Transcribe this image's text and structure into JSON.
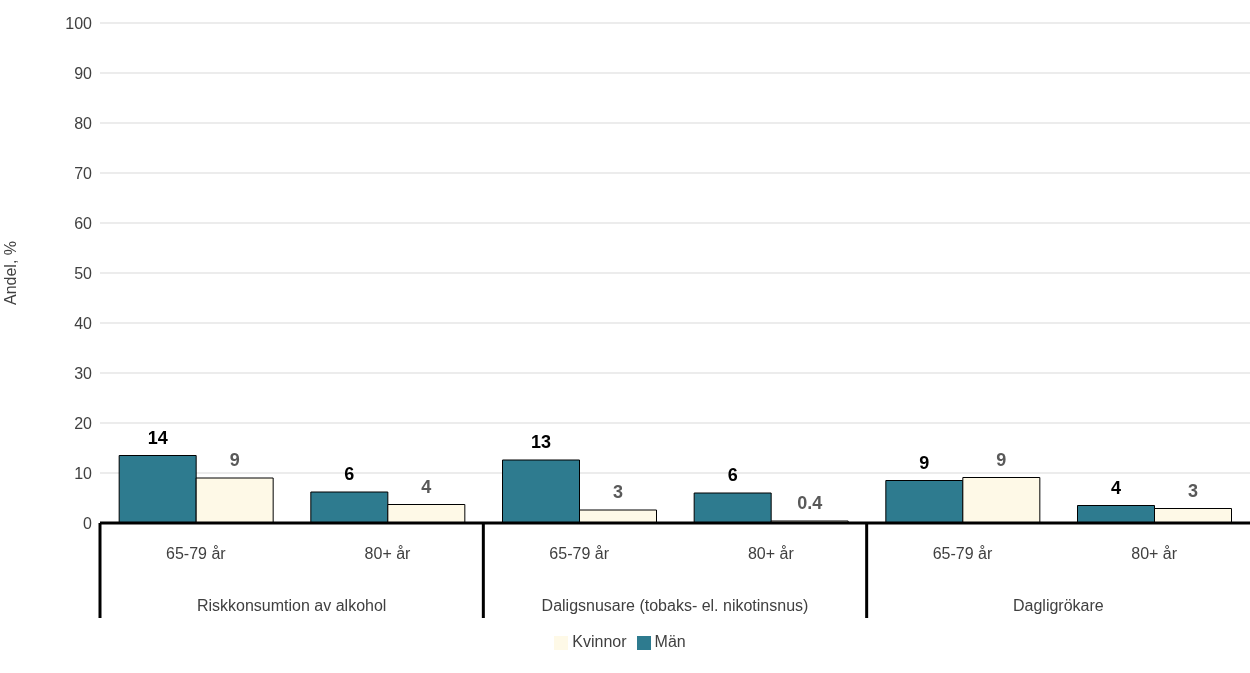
{
  "chart_data": {
    "type": "bar",
    "categories": [
      "65-79 år",
      "80+ år",
      "65-79 år",
      "80+ år",
      "65-79 år",
      "80+ år"
    ],
    "annotations": [
      "Riskkonsumtion av alkohol",
      "Daligsnusare (tobaks- el. nikotinsnus)",
      "Dagligrökare"
    ],
    "series": [
      {
        "name": "Män",
        "color": "#2e7b8f",
        "values": [
          13.5,
          6.2,
          12.6,
          6.0,
          8.5,
          3.5
        ],
        "value_labels": [
          "14",
          "6",
          "13",
          "6",
          "9",
          "4"
        ]
      },
      {
        "name": "Kvinnor",
        "color": "#fef9e7",
        "values": [
          9.0,
          3.7,
          2.6,
          0.4,
          9.1,
          2.9
        ],
        "value_labels": [
          "9",
          "4",
          "3",
          "0.4",
          "9",
          "3"
        ]
      }
    ],
    "ylabel": "Andel, %",
    "ylim": [
      0,
      100
    ],
    "yticks": [
      0,
      10,
      20,
      30,
      40,
      50,
      60,
      70,
      80,
      90,
      100
    ],
    "grid": "y",
    "legend": "bottom"
  }
}
